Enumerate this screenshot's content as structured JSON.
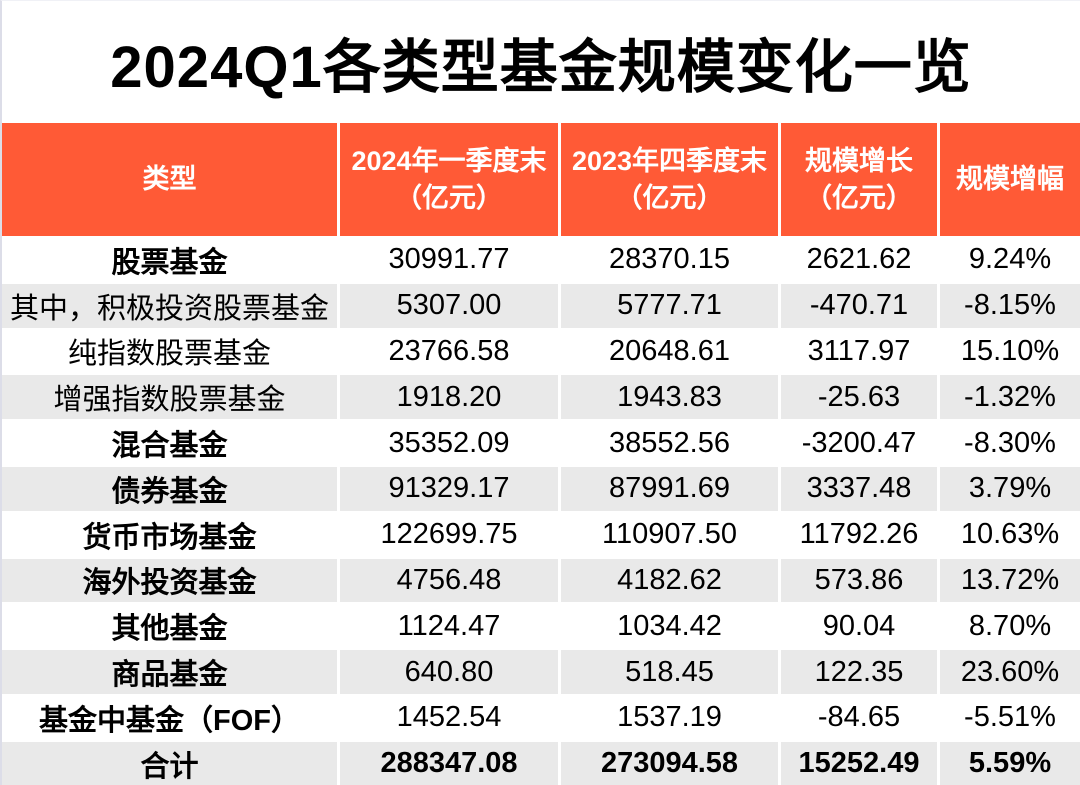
{
  "title": "2024Q1各类型基金规模变化一览",
  "colors": {
    "header_bg": "#ff5a36",
    "stripe_bg": "#e9e9e9",
    "header_text": "#ffffff",
    "body_text": "#000000"
  },
  "chart_data": {
    "type": "table",
    "title": "2024Q1各类型基金规模变化一览",
    "columns": [
      "类型",
      "2024年一季度末\n（亿元）",
      "2023年四季度末\n（亿元）",
      "规模增长\n（亿元）",
      "规模增幅"
    ],
    "rows": [
      {
        "type": "股票基金",
        "q1_2024": "30991.77",
        "q4_2023": "28370.15",
        "change": "2621.62",
        "change_pct": "9.24%",
        "type_bold": true,
        "all_bold": false
      },
      {
        "type": "其中，积极投资股票基金",
        "q1_2024": "5307.00",
        "q4_2023": "5777.71",
        "change": "-470.71",
        "change_pct": "-8.15%",
        "type_bold": false,
        "all_bold": false
      },
      {
        "type": "纯指数股票基金",
        "q1_2024": "23766.58",
        "q4_2023": "20648.61",
        "change": "3117.97",
        "change_pct": "15.10%",
        "type_bold": false,
        "all_bold": false
      },
      {
        "type": "增强指数股票基金",
        "q1_2024": "1918.20",
        "q4_2023": "1943.83",
        "change": "-25.63",
        "change_pct": "-1.32%",
        "type_bold": false,
        "all_bold": false
      },
      {
        "type": "混合基金",
        "q1_2024": "35352.09",
        "q4_2023": "38552.56",
        "change": "-3200.47",
        "change_pct": "-8.30%",
        "type_bold": true,
        "all_bold": false
      },
      {
        "type": "债券基金",
        "q1_2024": "91329.17",
        "q4_2023": "87991.69",
        "change": "3337.48",
        "change_pct": "3.79%",
        "type_bold": true,
        "all_bold": false
      },
      {
        "type": "货币市场基金",
        "q1_2024": "122699.75",
        "q4_2023": "110907.50",
        "change": "11792.26",
        "change_pct": "10.63%",
        "type_bold": true,
        "all_bold": false
      },
      {
        "type": "海外投资基金",
        "q1_2024": "4756.48",
        "q4_2023": "4182.62",
        "change": "573.86",
        "change_pct": "13.72%",
        "type_bold": true,
        "all_bold": false
      },
      {
        "type": "其他基金",
        "q1_2024": "1124.47",
        "q4_2023": "1034.42",
        "change": "90.04",
        "change_pct": "8.70%",
        "type_bold": true,
        "all_bold": false
      },
      {
        "type": "商品基金",
        "q1_2024": "640.80",
        "q4_2023": "518.45",
        "change": "122.35",
        "change_pct": "23.60%",
        "type_bold": true,
        "all_bold": false
      },
      {
        "type": "基金中基金（FOF）",
        "q1_2024": "1452.54",
        "q4_2023": "1537.19",
        "change": "-84.65",
        "change_pct": "-5.51%",
        "type_bold": true,
        "all_bold": false
      },
      {
        "type": "合计",
        "q1_2024": "288347.08",
        "q4_2023": "273094.58",
        "change": "15252.49",
        "change_pct": "5.59%",
        "type_bold": true,
        "all_bold": true
      }
    ]
  }
}
